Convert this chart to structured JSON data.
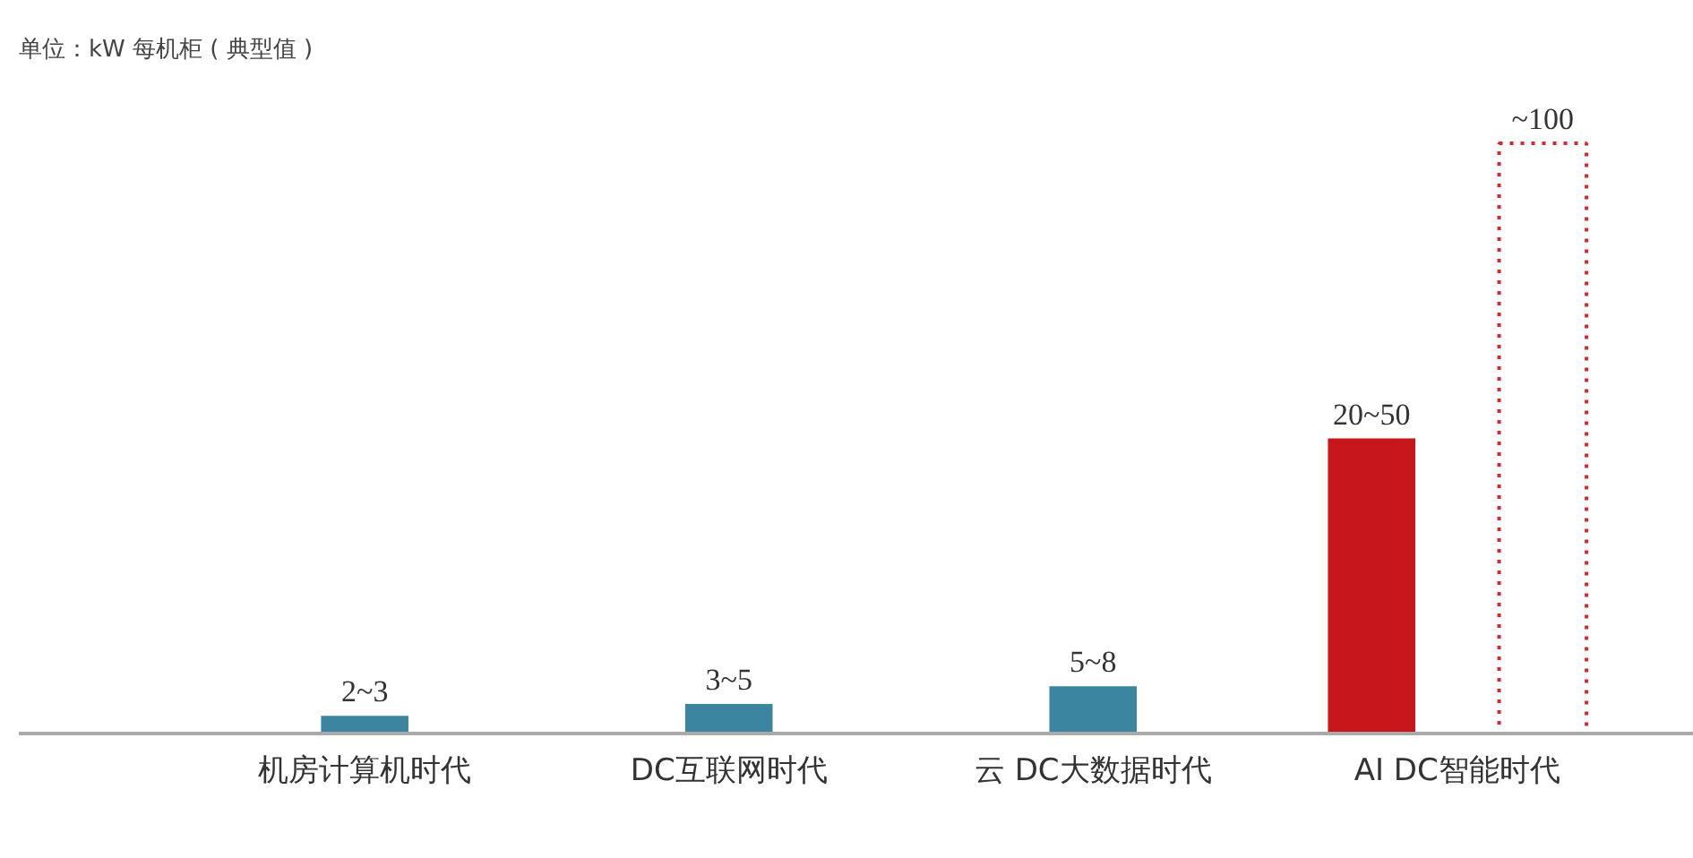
{
  "chart_data": {
    "type": "bar",
    "title": "单位：kW 每机柜 ( 典型值 )",
    "tick_labels": "x",
    "categories": [
      "机房计算机时代",
      "DC互联网时代",
      "云 DC大数据时代",
      "AI DC智能时代"
    ],
    "series": [
      {
        "colors": [
          "#3b85a0",
          "#3b85a0",
          "#3b85a0",
          "#c8161d"
        ],
        "values": [
          3,
          5,
          8,
          50
        ],
        "value_labels": [
          "2~3",
          "3~5",
          "5~8",
          "20~50"
        ]
      },
      {
        "color": "#d9272e",
        "line_style": "dotted",
        "values": [
          null,
          null,
          null,
          100
        ],
        "value_labels": [
          null,
          null,
          null,
          "~100"
        ]
      }
    ],
    "grid": false
  }
}
